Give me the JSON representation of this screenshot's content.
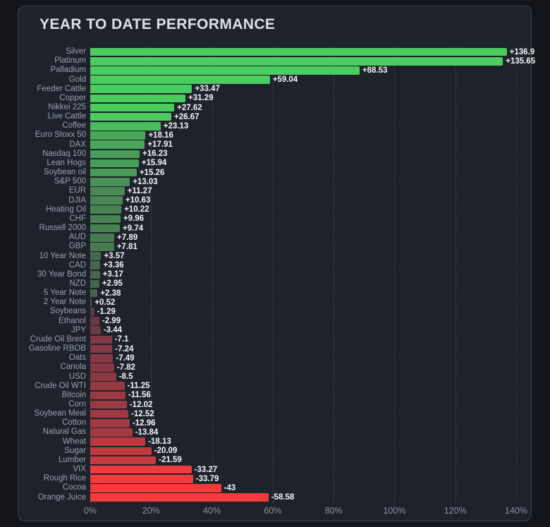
{
  "panel": {
    "title": "YEAR TO DATE PERFORMANCE"
  },
  "chart_data": {
    "type": "bar",
    "orientation": "horizontal",
    "title": "YEAR TO DATE PERFORMANCE",
    "xlabel": "",
    "ylabel": "",
    "xlim": [
      0,
      145
    ],
    "grid": "vertical-dashed",
    "x_ticks": [
      "0%",
      "20%",
      "40%",
      "60%",
      "80%",
      "100%",
      "120%",
      "140%"
    ],
    "categories": [
      "Silver",
      "Platinum",
      "Palladium",
      "Gold",
      "Feeder Cattle",
      "Copper",
      "Nikkei 225",
      "Live Cattle",
      "Coffee",
      "Euro Stoxx 50",
      "DAX",
      "Nasdaq 100",
      "Lean Hogs",
      "Soybean oil",
      "S&P 500",
      "EUR",
      "DJIA",
      "Heating Oil",
      "CHF",
      "Russell 2000",
      "AUD",
      "GBP",
      "10 Year Note",
      "CAD",
      "30 Year Bond",
      "NZD",
      "5 Year Note",
      "2 Year Note",
      "Soybeans",
      "Ethanol",
      "JPY",
      "Crude Oil Brent",
      "Gasoline RBOB",
      "Oats",
      "Canola",
      "USD",
      "Crude Oil WTI",
      "Bitcoin",
      "Corn",
      "Soybean Meal",
      "Cotton",
      "Natural Gas",
      "Wheat",
      "Sugar",
      "Lumber",
      "VIX",
      "Rough Rice",
      "Cocoa",
      "Orange Juice"
    ],
    "values": [
      136.9,
      135.65,
      88.53,
      59.04,
      33.47,
      31.29,
      27.62,
      26.67,
      23.13,
      18.16,
      17.91,
      16.23,
      15.94,
      15.26,
      13.03,
      11.27,
      10.63,
      10.22,
      9.96,
      9.74,
      7.89,
      7.81,
      3.57,
      3.36,
      3.17,
      2.95,
      2.38,
      0.52,
      -1.29,
      -2.99,
      -3.44,
      -7.1,
      -7.24,
      -7.49,
      -7.82,
      -8.5,
      -11.25,
      -11.56,
      -12.02,
      -12.52,
      -12.96,
      -13.84,
      -18.13,
      -20.09,
      -21.59,
      -33.27,
      -33.79,
      -43,
      -58.58
    ],
    "value_labels": [
      "+136.9",
      "+135.65",
      "+88.53",
      "+59.04",
      "+33.47",
      "+31.29",
      "+27.62",
      "+26.67",
      "+23.13",
      "+18.16",
      "+17.91",
      "+16.23",
      "+15.94",
      "+15.26",
      "+13.03",
      "+11.27",
      "+10.63",
      "+10.22",
      "+9.96",
      "+9.74",
      "+7.89",
      "+7.81",
      "+3.57",
      "+3.36",
      "+3.17",
      "+2.95",
      "+2.38",
      "+0.52",
      "-1.29",
      "-2.99",
      "-3.44",
      "-7.1",
      "-7.24",
      "-7.49",
      "-7.82",
      "-8.5",
      "-11.25",
      "-11.56",
      "-12.02",
      "-12.52",
      "-12.96",
      "-13.84",
      "-18.13",
      "-20.09",
      "-21.59",
      "-33.27",
      "-33.79",
      "-43",
      "-58.58"
    ],
    "colors": {
      "positive_max": "#4acd5e",
      "positive_min": "#46584c",
      "negative_min": "#52374a",
      "negative_max": "#f03b3b",
      "page_background": "#13151b",
      "panel_background": "#1e222b",
      "panel_border": "#3a3f4b",
      "gridline": "#3a404c",
      "category_label": "#98a0af",
      "value_label": "#f4f5f7",
      "axis_label": "#8b91a0",
      "title": "#dce0e8"
    }
  }
}
